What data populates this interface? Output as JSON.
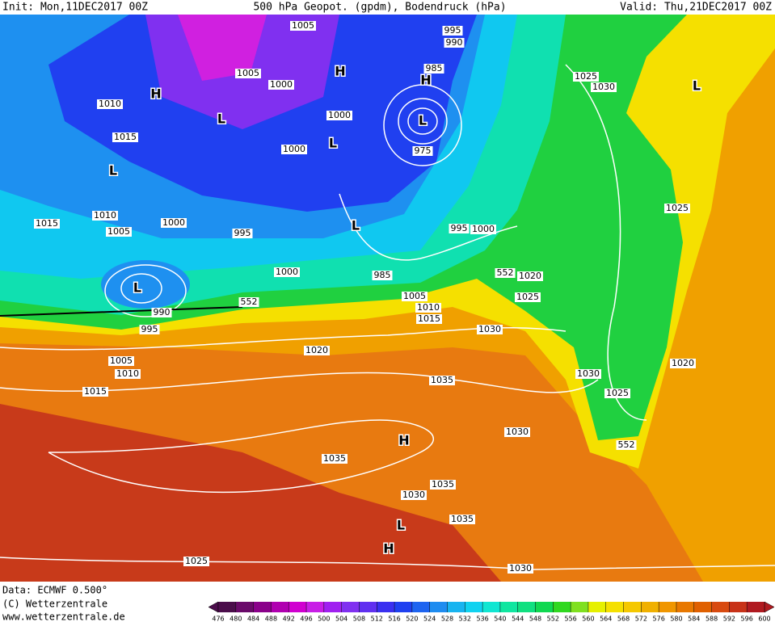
{
  "header": {
    "init": "Init: Mon,11DEC2017 00Z",
    "title": "500 hPa Geopot. (gpdm), Bodendruck (hPa)",
    "valid": "Valid: Thu,21DEC2017 00Z"
  },
  "map": {
    "isobar_labels": [
      "1005",
      "995",
      "990",
      "985",
      "1005",
      "1000",
      "1010",
      "1015",
      "1000",
      "1000",
      "975",
      "1025",
      "1030",
      "1025",
      "1015",
      "1010",
      "1005",
      "1000",
      "995",
      "995",
      "1000",
      "985",
      "1000",
      "552",
      "552",
      "1020",
      "1025",
      "1005",
      "1010",
      "1015",
      "1030",
      "990",
      "995",
      "1020",
      "1005",
      "1010",
      "1015",
      "1035",
      "1030",
      "1025",
      "1020",
      "1030",
      "552",
      "1035",
      "1035",
      "1030",
      "1035",
      "1025",
      "1030"
    ],
    "pressure_centers": [
      "H",
      "L",
      "H",
      "L",
      "L",
      "H",
      "L",
      "L",
      "L",
      "H",
      "L",
      "H",
      "L"
    ]
  },
  "footer": {
    "source": "Data: ECMWF   0.500°",
    "copyright": "(C) Wetterzentrale",
    "url": "www.wetterzentrale.de"
  },
  "colorbar": {
    "ticks": [
      476,
      480,
      484,
      488,
      492,
      496,
      500,
      504,
      508,
      512,
      516,
      520,
      524,
      528,
      532,
      536,
      540,
      544,
      548,
      552,
      556,
      560,
      564,
      568,
      572,
      576,
      580,
      584,
      588,
      592,
      596,
      600
    ],
    "colors": [
      "#4b0d4b",
      "#6a0a6a",
      "#8a008a",
      "#b000b0",
      "#d000d0",
      "#c81ee6",
      "#a020f0",
      "#8030f0",
      "#6030f0",
      "#3a30f0",
      "#1f40f0",
      "#1e64f0",
      "#1e8cf0",
      "#18b4f0",
      "#10d2f0",
      "#10e6d2",
      "#10e6a0",
      "#10e080",
      "#10d850",
      "#30d820",
      "#80e020",
      "#e6f000",
      "#f5e000",
      "#f5c800",
      "#f0b000",
      "#f09600",
      "#e87800",
      "#e06000",
      "#d84a10",
      "#c83218",
      "#b01a20"
    ]
  }
}
